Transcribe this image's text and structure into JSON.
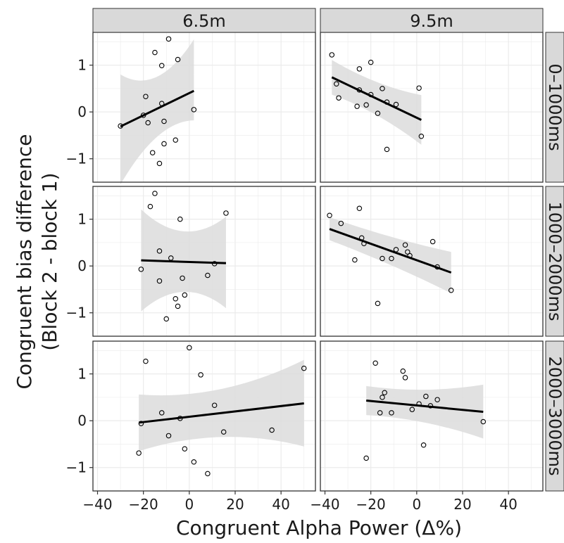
{
  "chart_data": {
    "type": "scatter",
    "title": "",
    "xlabel": "Congruent Alpha Power (Δ%)",
    "ylabel_line1": "Congruent bias difference",
    "ylabel_line2": "(Block 2 - block 1)",
    "column_strips": [
      "6.5m",
      "9.5m"
    ],
    "row_strips": [
      "0–1000ms",
      "1000–2000ms",
      "2000–3000ms"
    ],
    "xlim": [
      -42,
      55
    ],
    "ylim": [
      -1.5,
      1.7
    ],
    "x_ticks": [
      -40,
      -20,
      0,
      20,
      40
    ],
    "x_tick_labels": [
      "−40",
      "−20",
      "0",
      "20",
      "40"
    ],
    "y_ticks": [
      -1,
      0,
      1
    ],
    "y_tick_labels": [
      "−1",
      "0",
      "1"
    ],
    "grid": true,
    "colors": {
      "panel_border": "#333333",
      "strip_fill": "#d9d9d9",
      "ribbon": "#dcdcdc",
      "fit_line": "#000000",
      "grid": "#ebebeb"
    },
    "panels": [
      {
        "row": 0,
        "col": 0,
        "points": [
          [
            -30,
            -0.3
          ],
          [
            -19,
            0.33
          ],
          [
            -20,
            -0.07
          ],
          [
            -18,
            -0.23
          ],
          [
            -15,
            1.27
          ],
          [
            -16,
            -0.87
          ],
          [
            -13,
            -1.1
          ],
          [
            -12,
            0.99
          ],
          [
            -12,
            0.18
          ],
          [
            -11,
            -0.2
          ],
          [
            -11,
            -0.68
          ],
          [
            -9,
            1.56
          ],
          [
            -6,
            -0.6
          ],
          [
            -5,
            1.12
          ],
          [
            2,
            0.05
          ]
        ],
        "fit": {
          "x": [
            -30,
            2
          ],
          "y": [
            -0.31,
            0.45
          ],
          "ci_lo": [
            -1.55,
            -0.18
          ],
          "ci_hi": [
            0.8,
            1.55
          ]
        }
      },
      {
        "row": 0,
        "col": 1,
        "points": [
          [
            -37,
            1.22
          ],
          [
            -35,
            0.6
          ],
          [
            -34,
            0.3
          ],
          [
            -26,
            0.12
          ],
          [
            -25,
            0.47
          ],
          [
            -25,
            0.92
          ],
          [
            -22,
            0.15
          ],
          [
            -20,
            0.37
          ],
          [
            -20,
            1.06
          ],
          [
            -17,
            -0.03
          ],
          [
            -15,
            0.5
          ],
          [
            -13,
            0.21
          ],
          [
            -13,
            -0.8
          ],
          [
            -9,
            0.16
          ],
          [
            1,
            0.51
          ],
          [
            2,
            -0.52
          ]
        ],
        "fit": {
          "x": [
            -37,
            2
          ],
          "y": [
            0.74,
            -0.17
          ],
          "ci_lo": [
            0.37,
            -0.7
          ],
          "ci_hi": [
            1.11,
            0.36
          ]
        }
      },
      {
        "row": 1,
        "col": 0,
        "points": [
          [
            -21,
            -0.07
          ],
          [
            -17,
            1.27
          ],
          [
            -15,
            1.55
          ],
          [
            -13,
            0.32
          ],
          [
            -13,
            -0.32
          ],
          [
            -10,
            -1.13
          ],
          [
            -8,
            0.17
          ],
          [
            -6,
            -0.7
          ],
          [
            -5,
            -0.86
          ],
          [
            -4,
            1.0
          ],
          [
            -3,
            -0.26
          ],
          [
            -2,
            -0.62
          ],
          [
            8,
            -0.2
          ],
          [
            11,
            0.05
          ],
          [
            16,
            1.13
          ]
        ],
        "fit": {
          "x": [
            -21,
            16
          ],
          "y": [
            0.12,
            0.06
          ],
          "ci_lo": [
            -0.97,
            -0.9
          ],
          "ci_hi": [
            1.21,
            1.05
          ]
        }
      },
      {
        "row": 1,
        "col": 1,
        "points": [
          [
            -38,
            1.08
          ],
          [
            -33,
            0.91
          ],
          [
            -27,
            0.13
          ],
          [
            -25,
            1.23
          ],
          [
            -24,
            0.6
          ],
          [
            -23,
            0.48
          ],
          [
            -17,
            -0.8
          ],
          [
            -15,
            0.16
          ],
          [
            -11,
            0.16
          ],
          [
            -9,
            0.35
          ],
          [
            -5,
            0.45
          ],
          [
            -4,
            0.3
          ],
          [
            -3,
            0.22
          ],
          [
            7,
            0.52
          ],
          [
            9,
            -0.02
          ],
          [
            15,
            -0.52
          ]
        ],
        "fit": {
          "x": [
            -38,
            15
          ],
          "y": [
            0.79,
            -0.14
          ],
          "ci_lo": [
            0.55,
            -0.58
          ],
          "ci_hi": [
            1.04,
            0.3
          ]
        }
      },
      {
        "row": 2,
        "col": 0,
        "points": [
          [
            -22,
            -0.69
          ],
          [
            -21,
            -0.06
          ],
          [
            -19,
            1.27
          ],
          [
            -12,
            0.17
          ],
          [
            -9,
            -0.32
          ],
          [
            -4,
            0.05
          ],
          [
            -2,
            -0.6
          ],
          [
            0,
            1.56
          ],
          [
            2,
            -0.88
          ],
          [
            5,
            0.98
          ],
          [
            8,
            -1.13
          ],
          [
            11,
            0.33
          ],
          [
            15,
            -0.24
          ],
          [
            36,
            -0.2
          ],
          [
            50,
            1.12
          ]
        ],
        "fit": {
          "x": [
            -22,
            50
          ],
          "y": [
            -0.04,
            0.37
          ],
          "ci_lo": [
            -0.65,
            -0.55
          ],
          "ci_hi": [
            0.56,
            1.3
          ]
        }
      },
      {
        "row": 2,
        "col": 1,
        "points": [
          [
            -22,
            -0.8
          ],
          [
            -18,
            1.23
          ],
          [
            -16,
            0.17
          ],
          [
            -15,
            0.5
          ],
          [
            -14,
            0.6
          ],
          [
            -11,
            0.17
          ],
          [
            -6,
            1.06
          ],
          [
            -5,
            0.92
          ],
          [
            -2,
            0.24
          ],
          [
            1,
            0.36
          ],
          [
            3,
            -0.52
          ],
          [
            4,
            0.52
          ],
          [
            6,
            0.32
          ],
          [
            9,
            0.45
          ],
          [
            29,
            -0.02
          ]
        ],
        "fit": {
          "x": [
            -22,
            29
          ],
          "y": [
            0.43,
            0.19
          ],
          "ci_lo": [
            0.12,
            -0.38
          ],
          "ci_hi": [
            0.74,
            0.77
          ]
        }
      }
    ]
  }
}
